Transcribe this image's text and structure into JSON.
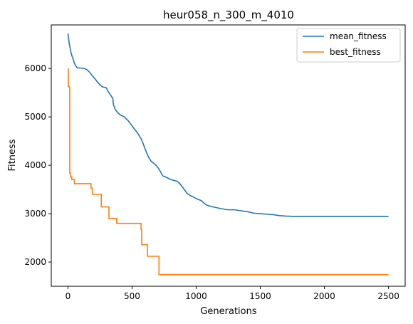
{
  "chart_data": {
    "type": "line",
    "title": "heur058_n_300_m_4010",
    "xlabel": "Generations",
    "ylabel": "Fitness",
    "xlim": [
      -130,
      2630
    ],
    "ylim": [
      1500,
      6900
    ],
    "xticks": [
      0,
      500,
      1000,
      1500,
      2000,
      2500
    ],
    "yticks": [
      2000,
      3000,
      4000,
      5000,
      6000
    ],
    "grid": false,
    "legend_position": "top-right",
    "series": [
      {
        "name": "mean_fitness",
        "color": "#1f77b4",
        "step": false,
        "points": [
          [
            0,
            6720
          ],
          [
            5,
            6620
          ],
          [
            10,
            6520
          ],
          [
            15,
            6450
          ],
          [
            20,
            6380
          ],
          [
            25,
            6320
          ],
          [
            30,
            6270
          ],
          [
            40,
            6200
          ],
          [
            50,
            6110
          ],
          [
            60,
            6060
          ],
          [
            70,
            6020
          ],
          [
            80,
            6010
          ],
          [
            100,
            6010
          ],
          [
            130,
            6000
          ],
          [
            150,
            5970
          ],
          [
            170,
            5920
          ],
          [
            190,
            5850
          ],
          [
            210,
            5790
          ],
          [
            230,
            5720
          ],
          [
            250,
            5660
          ],
          [
            270,
            5620
          ],
          [
            300,
            5600
          ],
          [
            310,
            5540
          ],
          [
            330,
            5460
          ],
          [
            350,
            5380
          ],
          [
            355,
            5250
          ],
          [
            370,
            5150
          ],
          [
            390,
            5080
          ],
          [
            410,
            5040
          ],
          [
            440,
            5000
          ],
          [
            470,
            4920
          ],
          [
            490,
            4850
          ],
          [
            510,
            4780
          ],
          [
            530,
            4710
          ],
          [
            550,
            4640
          ],
          [
            570,
            4550
          ],
          [
            585,
            4460
          ],
          [
            600,
            4350
          ],
          [
            615,
            4250
          ],
          [
            630,
            4160
          ],
          [
            650,
            4080
          ],
          [
            670,
            4040
          ],
          [
            690,
            3990
          ],
          [
            710,
            3920
          ],
          [
            725,
            3850
          ],
          [
            740,
            3780
          ],
          [
            760,
            3760
          ],
          [
            790,
            3720
          ],
          [
            820,
            3690
          ],
          [
            850,
            3670
          ],
          [
            870,
            3630
          ],
          [
            890,
            3560
          ],
          [
            910,
            3490
          ],
          [
            930,
            3420
          ],
          [
            950,
            3380
          ],
          [
            980,
            3340
          ],
          [
            1010,
            3300
          ],
          [
            1040,
            3270
          ],
          [
            1060,
            3220
          ],
          [
            1080,
            3180
          ],
          [
            1100,
            3160
          ],
          [
            1150,
            3130
          ],
          [
            1200,
            3100
          ],
          [
            1250,
            3080
          ],
          [
            1300,
            3080
          ],
          [
            1350,
            3060
          ],
          [
            1400,
            3040
          ],
          [
            1450,
            3010
          ],
          [
            1500,
            3000
          ],
          [
            1550,
            2990
          ],
          [
            1600,
            2980
          ],
          [
            1650,
            2960
          ],
          [
            1700,
            2950
          ],
          [
            1750,
            2945
          ],
          [
            1800,
            2945
          ],
          [
            2000,
            2945
          ],
          [
            2200,
            2945
          ],
          [
            2500,
            2945
          ]
        ]
      },
      {
        "name": "best_fitness",
        "color": "#ff7f0e",
        "step": true,
        "points": [
          [
            0,
            5990
          ],
          [
            3,
            5630
          ],
          [
            10,
            5610
          ],
          [
            14,
            3840
          ],
          [
            20,
            3760
          ],
          [
            30,
            3710
          ],
          [
            50,
            3620
          ],
          [
            180,
            3530
          ],
          [
            190,
            3400
          ],
          [
            260,
            3140
          ],
          [
            320,
            2900
          ],
          [
            380,
            2800
          ],
          [
            570,
            2680
          ],
          [
            575,
            2360
          ],
          [
            620,
            2120
          ],
          [
            710,
            1740
          ],
          [
            2500,
            1740
          ]
        ]
      }
    ]
  }
}
